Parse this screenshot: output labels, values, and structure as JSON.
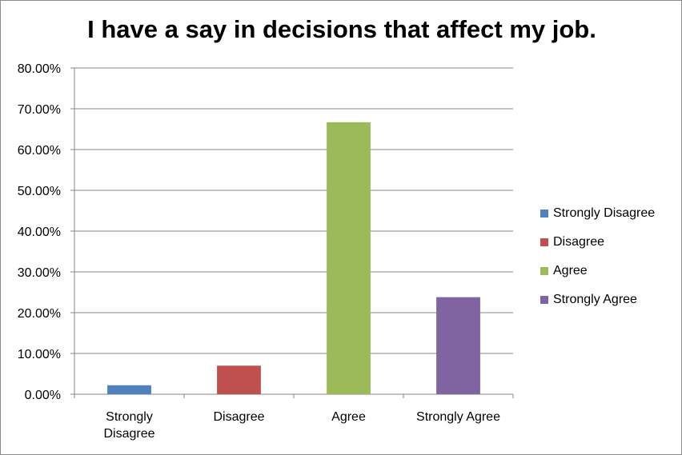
{
  "chart_data": {
    "type": "bar",
    "title": "I have a say in decisions that affect my job.",
    "categories": [
      "Strongly Disagree",
      "Disagree",
      "Agree",
      "Strongly Agree"
    ],
    "category_tick_labels": [
      [
        "Strongly",
        "Disagree"
      ],
      [
        "Disagree"
      ],
      [
        "Agree"
      ],
      [
        "Strongly Agree"
      ]
    ],
    "values": [
      2.2,
      7.0,
      66.7,
      23.8
    ],
    "colors": [
      "#4f81bd",
      "#c0504d",
      "#9bbb59",
      "#8064a2"
    ],
    "ylim": [
      0,
      80
    ],
    "yticks": [
      0,
      10,
      20,
      30,
      40,
      50,
      60,
      70,
      80
    ],
    "ytick_labels": [
      "0.00%",
      "10.00%",
      "20.00%",
      "30.00%",
      "40.00%",
      "50.00%",
      "60.00%",
      "70.00%",
      "80.00%"
    ],
    "grid": true,
    "legend": {
      "position": "right",
      "entries": [
        "Strongly Disagree",
        "Disagree",
        "Agree",
        "Strongly Agree"
      ]
    }
  }
}
